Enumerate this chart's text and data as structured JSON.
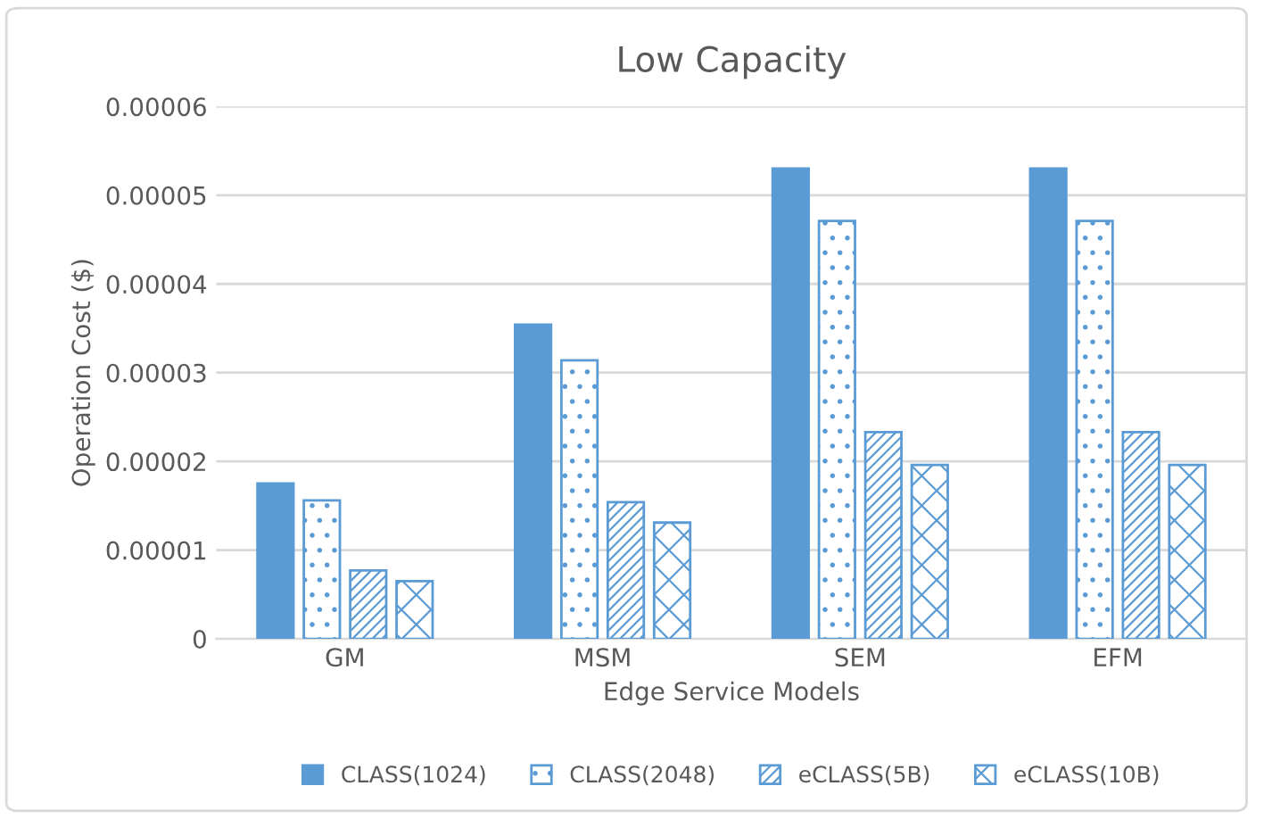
{
  "chart_data": {
    "type": "bar",
    "title": "Low Capacity",
    "xlabel": "Edge Service Models",
    "ylabel": "Operation Cost ($)",
    "categories": [
      "GM",
      "MSM",
      "SEM",
      "EFM"
    ],
    "series": [
      {
        "name": "CLASS(1024)",
        "color": "#5b9bd5",
        "values": [
          1.75e-05,
          3.54e-05,
          5.3e-05,
          5.3e-05
        ]
      },
      {
        "name": "CLASS(2048)",
        "color": "#5b9bd5",
        "values": [
          1.56e-05,
          3.14e-05,
          4.71e-05,
          4.71e-05
        ]
      },
      {
        "name": "eCLASS(5B)",
        "color": "#5b9bd5",
        "values": [
          7.7e-06,
          1.54e-05,
          2.33e-05,
          2.33e-05
        ]
      },
      {
        "name": "eCLASS(10B)",
        "color": "#5b9bd5",
        "values": [
          6.5e-06,
          1.31e-05,
          1.96e-05,
          1.96e-05
        ]
      }
    ],
    "ylim": [
      0,
      6e-05
    ],
    "yticks": [
      0,
      {
        "value": 1e-05,
        "label": "0.00001"
      },
      {
        "value": 2e-05,
        "label": "0.00002"
      },
      {
        "value": 3e-05,
        "label": "0.00003"
      },
      {
        "value": 4e-05,
        "label": "0.00004"
      },
      {
        "value": 5e-05,
        "label": "0.00005"
      },
      {
        "value": 6e-05,
        "label": "0.00006"
      }
    ],
    "grid": "y",
    "legend": "bottom"
  }
}
